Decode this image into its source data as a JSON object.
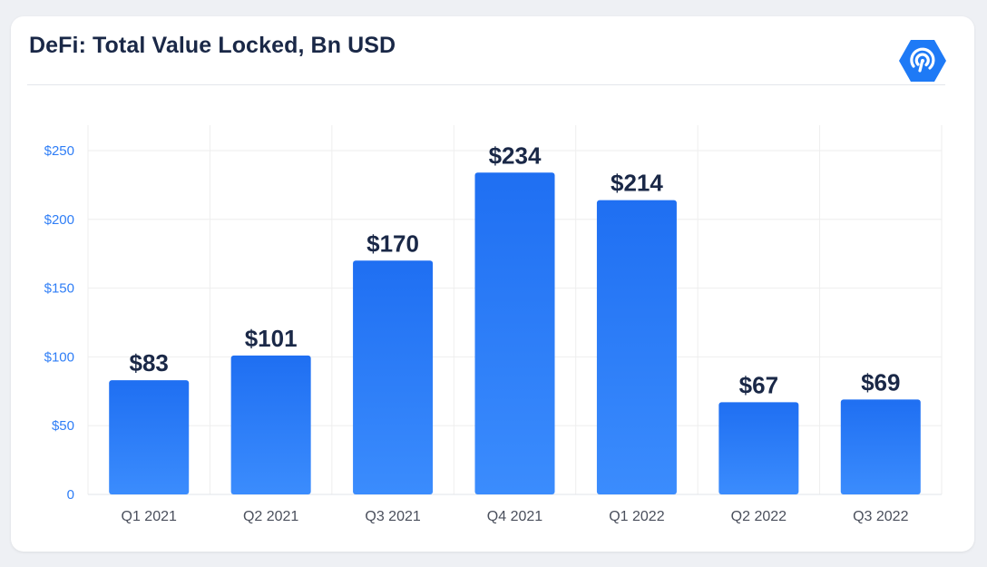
{
  "header": {
    "title": "DeFi: Total Value Locked, Bn USD",
    "logo_icon": "dappradar-logo-icon"
  },
  "colors": {
    "bar_top": "#1f6ff2",
    "bar_bottom": "#3b8cfd",
    "title": "#1a2847",
    "value_label": "#1a2847",
    "axis_tick": "#2f7ef6",
    "category_label": "#4a4f5c",
    "grid": "#eeeeee",
    "logo": "#1e7af6"
  },
  "chart_data": {
    "type": "bar",
    "title": "DeFi: Total Value Locked, Bn USD",
    "categories": [
      "Q1 2021",
      "Q2 2021",
      "Q3 2021",
      "Q4 2021",
      "Q1 2022",
      "Q2 2022",
      "Q3 2022"
    ],
    "values": [
      83,
      101,
      170,
      234,
      214,
      67,
      69
    ],
    "value_labels": [
      "$83",
      "$101",
      "$170",
      "$234",
      "$214",
      "$67",
      "$69"
    ],
    "y_ticks": [
      0,
      50,
      100,
      150,
      200,
      250
    ],
    "y_tick_labels": [
      "0",
      "$50",
      "$100",
      "$150",
      "$200",
      "$250"
    ],
    "ylim": [
      0,
      270
    ],
    "xlabel": "",
    "ylabel": "",
    "grid": true,
    "legend": "none"
  }
}
